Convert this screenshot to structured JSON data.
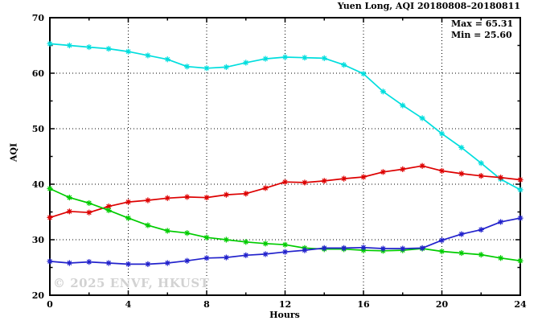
{
  "header": {
    "title": "Yuen Long, AQI 20180808–20180811"
  },
  "annotations": {
    "max_label": "Max = 65.31",
    "min_label": "Min = 25.60"
  },
  "watermark": {
    "text": "© 2025 ENVF, HKUST",
    "color": "#d2d2d2"
  },
  "chart_data": {
    "type": "line",
    "title": "Yuen Long, AQI 20180808–20180811",
    "xlabel": "Hours",
    "ylabel": "AQI",
    "xlim": [
      0,
      24
    ],
    "ylim": [
      20,
      70
    ],
    "x_major_ticks": [
      0,
      4,
      8,
      12,
      16,
      20,
      24
    ],
    "x_minor_ticks": [
      2,
      6,
      10,
      14,
      18,
      22
    ],
    "y_major_ticks": [
      20,
      30,
      40,
      50,
      60,
      70
    ],
    "y_minor_ticks": [
      25,
      35,
      45,
      55,
      65
    ],
    "grid": "dotted-at-major-ticks",
    "legend_position": "none",
    "marker": "asterisk",
    "stats": {
      "max": 65.31,
      "min": 25.6
    },
    "x": [
      0,
      1,
      2,
      3,
      4,
      5,
      6,
      7,
      8,
      9,
      10,
      11,
      12,
      13,
      14,
      15,
      16,
      17,
      18,
      19,
      20,
      21,
      22,
      23,
      24
    ],
    "series": [
      {
        "name": "cyan-series",
        "color": "#00dede",
        "values": [
          65.3,
          65.0,
          64.7,
          64.4,
          63.9,
          63.2,
          62.5,
          61.2,
          60.9,
          61.1,
          61.9,
          62.6,
          62.9,
          62.8,
          62.7,
          61.5,
          59.9,
          56.7,
          54.2,
          51.9,
          49.1,
          46.6,
          43.8,
          40.9,
          39.0
        ]
      },
      {
        "name": "red-series",
        "color": "#dd0000",
        "values": [
          34.0,
          35.1,
          34.9,
          36.0,
          36.8,
          37.1,
          37.5,
          37.7,
          37.6,
          38.1,
          38.3,
          39.3,
          40.4,
          40.3,
          40.6,
          41.0,
          41.3,
          42.2,
          42.7,
          43.3,
          42.4,
          41.9,
          41.5,
          41.2,
          40.8
        ]
      },
      {
        "name": "green-series",
        "color": "#00cc00",
        "values": [
          39.2,
          37.6,
          36.6,
          35.3,
          33.9,
          32.6,
          31.6,
          31.2,
          30.4,
          30.0,
          29.6,
          29.3,
          29.1,
          28.5,
          28.3,
          28.3,
          28.1,
          28.0,
          28.1,
          28.4,
          27.9,
          27.6,
          27.3,
          26.7,
          26.2
        ]
      },
      {
        "name": "blue-series",
        "color": "#2222cc",
        "values": [
          26.1,
          25.8,
          26.0,
          25.8,
          25.6,
          25.6,
          25.8,
          26.2,
          26.7,
          26.8,
          27.2,
          27.4,
          27.8,
          28.1,
          28.5,
          28.5,
          28.6,
          28.4,
          28.4,
          28.5,
          29.9,
          31.0,
          31.8,
          33.2,
          33.9
        ]
      }
    ]
  }
}
